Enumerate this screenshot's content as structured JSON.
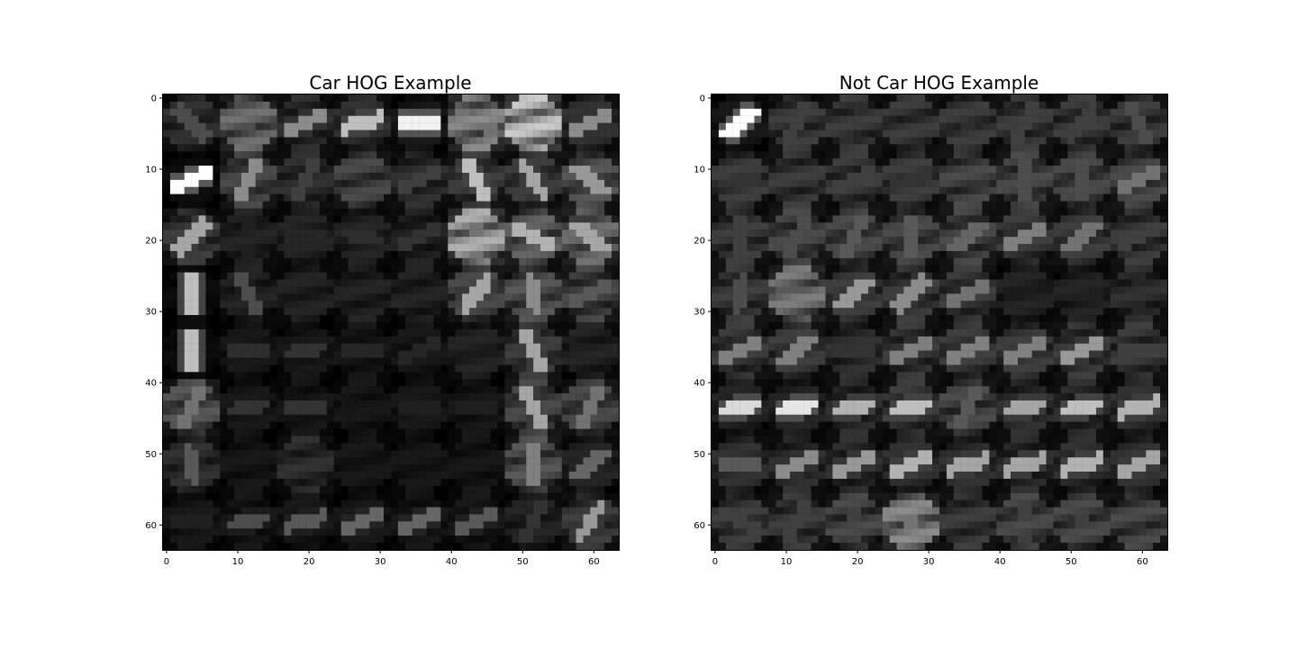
{
  "chart_data": [
    {
      "type": "heatmap",
      "title": "Car HOG Example",
      "xlabel": "",
      "ylabel": "",
      "colormap": "gray",
      "xlim": [
        -0.5,
        63.5
      ],
      "ylim": [
        63.5,
        -0.5
      ],
      "x_ticks": [
        0,
        10,
        20,
        30,
        40,
        50,
        60
      ],
      "y_ticks": [
        0,
        10,
        20,
        30,
        40,
        50,
        60
      ],
      "grid": false,
      "cells_per_side": 8,
      "pixels_per_cell": 8,
      "cells": [
        [
          {
            "a": 135,
            "s": 0.3,
            "d": 0.2
          },
          {
            "a": 110,
            "s": 0.3,
            "d": 0.45
          },
          {
            "a": 20,
            "s": 0.55,
            "d": 0.2
          },
          {
            "a": 15,
            "s": 0.75,
            "d": 0.2
          },
          {
            "a": 0,
            "s": 0.95,
            "d": 0.1
          },
          {
            "a": 160,
            "s": 0.45,
            "d": 0.55
          },
          {
            "a": 0,
            "s": 0.35,
            "d": 0.8
          },
          {
            "a": 20,
            "s": 0.55,
            "d": 0.2
          }
        ],
        [
          {
            "a": 20,
            "s": 1.0,
            "d": 0.05
          },
          {
            "a": 60,
            "s": 0.55,
            "d": 0.3
          },
          {
            "a": 70,
            "s": 0.25,
            "d": 0.2
          },
          {
            "a": 0,
            "s": 0.1,
            "d": 0.3
          },
          {
            "a": 20,
            "s": 0.25,
            "d": 0.2
          },
          {
            "a": 120,
            "s": 0.75,
            "d": 0.25
          },
          {
            "a": 125,
            "s": 0.65,
            "d": 0.25
          },
          {
            "a": 140,
            "s": 0.6,
            "d": 0.35
          }
        ],
        [
          {
            "a": 45,
            "s": 0.65,
            "d": 0.25
          },
          {
            "a": 90,
            "s": 0.12,
            "d": 0.15
          },
          {
            "a": 0,
            "s": 0.15,
            "d": 0.15
          },
          {
            "a": 170,
            "s": 0.18,
            "d": 0.15
          },
          {
            "a": 20,
            "s": 0.2,
            "d": 0.15
          },
          {
            "a": 90,
            "s": 0.45,
            "d": 0.7
          },
          {
            "a": 150,
            "s": 0.7,
            "d": 0.4
          },
          {
            "a": 140,
            "s": 0.65,
            "d": 0.45
          }
        ],
        [
          {
            "a": 90,
            "s": 0.75,
            "d": 0.05
          },
          {
            "a": 110,
            "s": 0.3,
            "d": 0.15
          },
          {
            "a": 0,
            "s": 0.08,
            "d": 0.15
          },
          {
            "a": 0,
            "s": 0.06,
            "d": 0.15
          },
          {
            "a": 0,
            "s": 0.06,
            "d": 0.15
          },
          {
            "a": 50,
            "s": 0.65,
            "d": 0.3
          },
          {
            "a": 100,
            "s": 0.55,
            "d": 0.35
          },
          {
            "a": 30,
            "s": 0.35,
            "d": 0.3
          }
        ],
        [
          {
            "a": 90,
            "s": 0.75,
            "d": 0.05
          },
          {
            "a": 0,
            "s": 0.18,
            "d": 0.1
          },
          {
            "a": 10,
            "s": 0.2,
            "d": 0.1
          },
          {
            "a": 0,
            "s": 0.15,
            "d": 0.1
          },
          {
            "a": 30,
            "s": 0.15,
            "d": 0.1
          },
          {
            "a": 0,
            "s": 0.1,
            "d": 0.15
          },
          {
            "a": 115,
            "s": 0.65,
            "d": 0.25
          },
          {
            "a": 0,
            "s": 0.12,
            "d": 0.15
          }
        ],
        [
          {
            "a": 70,
            "s": 0.45,
            "d": 0.35
          },
          {
            "a": 10,
            "s": 0.2,
            "d": 0.1
          },
          {
            "a": 0,
            "s": 0.2,
            "d": 0.1
          },
          {
            "a": 0,
            "s": 0.08,
            "d": 0.1
          },
          {
            "a": 0,
            "s": 0.12,
            "d": 0.1
          },
          {
            "a": 0,
            "s": 0.12,
            "d": 0.1
          },
          {
            "a": 115,
            "s": 0.65,
            "d": 0.3
          },
          {
            "a": 60,
            "s": 0.45,
            "d": 0.3
          }
        ],
        [
          {
            "a": 100,
            "s": 0.35,
            "d": 0.2
          },
          {
            "a": 0,
            "s": 0.06,
            "d": 0.1
          },
          {
            "a": 0,
            "s": 0.15,
            "d": 0.2
          },
          {
            "a": 0,
            "s": 0.06,
            "d": 0.1
          },
          {
            "a": 0,
            "s": 0.06,
            "d": 0.1
          },
          {
            "a": 0,
            "s": 0.06,
            "d": 0.1
          },
          {
            "a": 95,
            "s": 0.5,
            "d": 0.35
          },
          {
            "a": 40,
            "s": 0.4,
            "d": 0.15
          }
        ],
        [
          {
            "a": 0,
            "s": 0.12,
            "d": 0.1
          },
          {
            "a": 10,
            "s": 0.3,
            "d": 0.1
          },
          {
            "a": 15,
            "s": 0.35,
            "d": 0.1
          },
          {
            "a": 25,
            "s": 0.4,
            "d": 0.1
          },
          {
            "a": 20,
            "s": 0.4,
            "d": 0.1
          },
          {
            "a": 25,
            "s": 0.35,
            "d": 0.1
          },
          {
            "a": 60,
            "s": 0.2,
            "d": 0.15
          },
          {
            "a": 55,
            "s": 0.6,
            "d": 0.25
          }
        ]
      ]
    },
    {
      "type": "heatmap",
      "title": "Not Car HOG Example",
      "xlabel": "",
      "ylabel": "",
      "colormap": "gray",
      "xlim": [
        -0.5,
        63.5
      ],
      "ylim": [
        63.5,
        -0.5
      ],
      "x_ticks": [
        0,
        10,
        20,
        30,
        40,
        50,
        60
      ],
      "y_ticks": [
        0,
        10,
        20,
        30,
        40,
        50,
        60
      ],
      "grid": false,
      "cells_per_side": 8,
      "pixels_per_cell": 8,
      "cells": [
        [
          {
            "a": 40,
            "s": 1.0,
            "d": 0.1
          },
          {
            "a": 60,
            "s": 0.25,
            "d": 0.25
          },
          {
            "a": 60,
            "s": 0.18,
            "d": 0.25
          },
          {
            "a": 90,
            "s": 0.12,
            "d": 0.25
          },
          {
            "a": 110,
            "s": 0.18,
            "d": 0.25
          },
          {
            "a": 70,
            "s": 0.25,
            "d": 0.25
          },
          {
            "a": 50,
            "s": 0.25,
            "d": 0.25
          },
          {
            "a": 110,
            "s": 0.3,
            "d": 0.25
          }
        ],
        [
          {
            "a": 0,
            "s": 0.2,
            "d": 0.25
          },
          {
            "a": 0,
            "s": 0.2,
            "d": 0.25
          },
          {
            "a": 30,
            "s": 0.25,
            "d": 0.25
          },
          {
            "a": 20,
            "s": 0.2,
            "d": 0.25
          },
          {
            "a": 0,
            "s": 0.2,
            "d": 0.3
          },
          {
            "a": 90,
            "s": 0.3,
            "d": 0.3
          },
          {
            "a": 90,
            "s": 0.3,
            "d": 0.3
          },
          {
            "a": 30,
            "s": 0.45,
            "d": 0.3
          }
        ],
        [
          {
            "a": 90,
            "s": 0.25,
            "d": 0.25
          },
          {
            "a": 70,
            "s": 0.3,
            "d": 0.3
          },
          {
            "a": 70,
            "s": 0.35,
            "d": 0.3
          },
          {
            "a": 90,
            "s": 0.35,
            "d": 0.3
          },
          {
            "a": 40,
            "s": 0.4,
            "d": 0.3
          },
          {
            "a": 25,
            "s": 0.5,
            "d": 0.25
          },
          {
            "a": 40,
            "s": 0.45,
            "d": 0.25
          },
          {
            "a": 25,
            "s": 0.25,
            "d": 0.25
          }
        ],
        [
          {
            "a": 80,
            "s": 0.3,
            "d": 0.25
          },
          {
            "a": 0,
            "s": 0.35,
            "d": 0.5
          },
          {
            "a": 40,
            "s": 0.6,
            "d": 0.25
          },
          {
            "a": 45,
            "s": 0.55,
            "d": 0.25
          },
          {
            "a": 30,
            "s": 0.45,
            "d": 0.25
          },
          {
            "a": 0,
            "s": 0.1,
            "d": 0.15
          },
          {
            "a": 0,
            "s": 0.12,
            "d": 0.15
          },
          {
            "a": 90,
            "s": 0.15,
            "d": 0.2
          }
        ],
        [
          {
            "a": 30,
            "s": 0.5,
            "d": 0.25
          },
          {
            "a": 40,
            "s": 0.5,
            "d": 0.25
          },
          {
            "a": 0,
            "s": 0.2,
            "d": 0.2
          },
          {
            "a": 20,
            "s": 0.5,
            "d": 0.25
          },
          {
            "a": 20,
            "s": 0.5,
            "d": 0.25
          },
          {
            "a": 20,
            "s": 0.5,
            "d": 0.25
          },
          {
            "a": 20,
            "s": 0.6,
            "d": 0.25
          },
          {
            "a": 0,
            "s": 0.25,
            "d": 0.25
          }
        ],
        [
          {
            "a": 10,
            "s": 0.85,
            "d": 0.15
          },
          {
            "a": 10,
            "s": 0.9,
            "d": 0.15
          },
          {
            "a": 10,
            "s": 0.7,
            "d": 0.2
          },
          {
            "a": 10,
            "s": 0.75,
            "d": 0.25
          },
          {
            "a": 60,
            "s": 0.35,
            "d": 0.3
          },
          {
            "a": 10,
            "s": 0.65,
            "d": 0.2
          },
          {
            "a": 10,
            "s": 0.75,
            "d": 0.2
          },
          {
            "a": 15,
            "s": 0.7,
            "d": 0.2
          }
        ],
        [
          {
            "a": 0,
            "s": 0.35,
            "d": 0.2
          },
          {
            "a": 20,
            "s": 0.55,
            "d": 0.2
          },
          {
            "a": 20,
            "s": 0.6,
            "d": 0.2
          },
          {
            "a": 20,
            "s": 0.7,
            "d": 0.2
          },
          {
            "a": 15,
            "s": 0.65,
            "d": 0.2
          },
          {
            "a": 15,
            "s": 0.65,
            "d": 0.2
          },
          {
            "a": 15,
            "s": 0.7,
            "d": 0.2
          },
          {
            "a": 20,
            "s": 0.65,
            "d": 0.2
          }
        ],
        [
          {
            "a": 150,
            "s": 0.25,
            "d": 0.25
          },
          {
            "a": 60,
            "s": 0.25,
            "d": 0.25
          },
          {
            "a": 90,
            "s": 0.25,
            "d": 0.3
          },
          {
            "a": 120,
            "s": 0.45,
            "d": 0.55
          },
          {
            "a": 0,
            "s": 0.15,
            "d": 0.25
          },
          {
            "a": 90,
            "s": 0.25,
            "d": 0.3
          },
          {
            "a": 90,
            "s": 0.25,
            "d": 0.3
          },
          {
            "a": 90,
            "s": 0.18,
            "d": 0.3
          }
        ]
      ]
    }
  ]
}
